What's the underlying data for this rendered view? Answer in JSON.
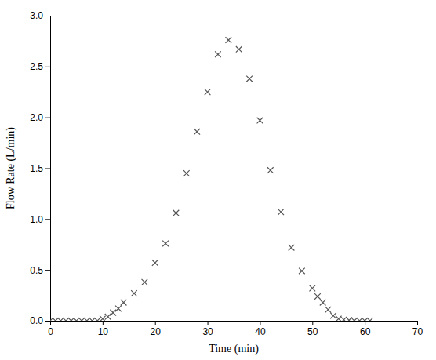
{
  "chart_data": {
    "type": "scatter",
    "x": [
      0,
      1,
      2,
      3,
      4,
      5,
      6,
      7,
      8,
      9,
      10,
      11,
      12,
      13,
      14,
      16,
      18,
      20,
      22,
      24,
      26,
      28,
      30,
      32,
      34,
      36,
      38,
      40,
      42,
      44,
      46,
      48,
      50,
      51,
      52,
      53,
      54,
      55,
      56,
      57,
      58,
      59,
      60,
      61
    ],
    "values": [
      0.0,
      0.0,
      0.0,
      0.0,
      0.0,
      0.0,
      0.0,
      0.0,
      0.0,
      0.0,
      0.02,
      0.04,
      0.08,
      0.12,
      0.18,
      0.27,
      0.38,
      0.57,
      0.76,
      1.06,
      1.45,
      1.86,
      2.25,
      2.62,
      2.76,
      2.67,
      2.38,
      1.97,
      1.48,
      1.07,
      0.72,
      0.49,
      0.32,
      0.24,
      0.18,
      0.11,
      0.05,
      0.02,
      0.01,
      0.005,
      0.0,
      0.0,
      0.0,
      0.0
    ],
    "color": "#555555",
    "marker": "x",
    "xlim": [
      0,
      70
    ],
    "ylim": [
      0,
      3
    ],
    "xticks": [
      0,
      10,
      20,
      30,
      40,
      50,
      60,
      70
    ],
    "yticks": [
      {
        "value": 0,
        "label": "0.0"
      },
      0.5,
      {
        "value": 1.0,
        "label": "1.0"
      },
      1.5,
      {
        "value": 2.0,
        "label": "2.0"
      },
      2.5,
      {
        "value": 3.0,
        "label": "3.0"
      }
    ],
    "xlabel": "Time (min)",
    "ylabel": "Flow Rate (L/min)"
  }
}
